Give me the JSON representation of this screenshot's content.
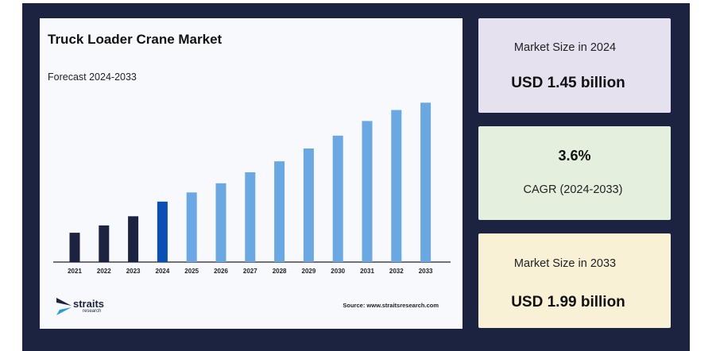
{
  "chart_data": {
    "type": "bar",
    "title": "Truck Loader Crane Market",
    "subtitle": "Forecast 2024-2033",
    "categories": [
      "2021",
      "2022",
      "2023",
      "2024",
      "2025",
      "2026",
      "2027",
      "2028",
      "2029",
      "2030",
      "2031",
      "2032",
      "2033"
    ],
    "values": [
      1.28,
      1.32,
      1.37,
      1.45,
      1.5,
      1.55,
      1.61,
      1.67,
      1.74,
      1.81,
      1.89,
      1.95,
      1.99
    ],
    "value_unit": "USD billion",
    "ylim": [
      1.12,
      2.0
    ],
    "grid": false,
    "colors": {
      "historical": "#1c2340",
      "base_year": "#0a4fb5",
      "forecast": "#6aa8e3"
    },
    "base_year": "2024"
  },
  "brand": {
    "logo_name": "straits",
    "logo_sub": "research"
  },
  "source_text": "Source: www.straitsresearch.com",
  "stats": {
    "size_2024_label": "Market Size in 2024",
    "size_2024_value": "USD 1.45 billion",
    "cagr_value": "3.6%",
    "cagr_label": "CAGR (2024-2033)",
    "size_2033_label": "Market Size in 2033",
    "size_2033_value": "USD 1.99 billion"
  }
}
